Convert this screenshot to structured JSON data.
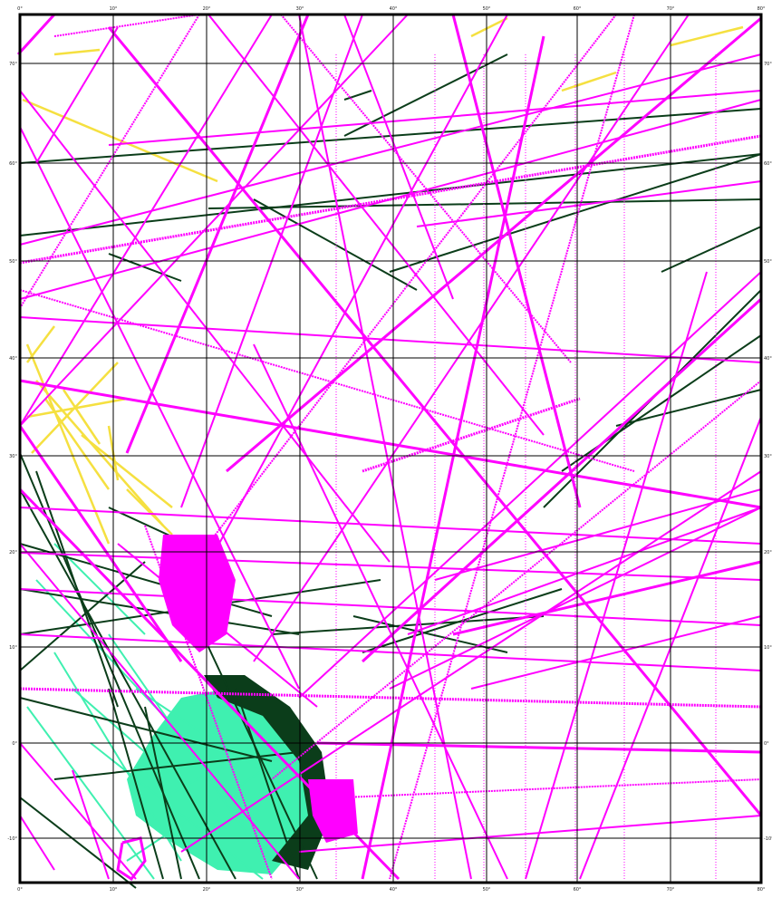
{
  "map": {
    "type": "ship-track-coverage-map",
    "track_colors": {
      "primary": "#ff00ff",
      "secondary": "#0b3d1a",
      "tertiary": "#f5e040",
      "quaternary": "#3ff0b0"
    },
    "grid": {
      "lines": "on",
      "color": "#000000"
    },
    "tick_labels": {
      "top": [
        "0°",
        "10°",
        "20°",
        "30°",
        "40°",
        "50°",
        "60°",
        "70°",
        "80°"
      ],
      "left": [
        "70°",
        "60°",
        "50°",
        "40°",
        "30°",
        "20°",
        "10°",
        "0°",
        "-10°"
      ],
      "right": [
        "70°",
        "60°",
        "50°",
        "40°",
        "30°",
        "20°",
        "10°",
        "0°",
        "-10°"
      ],
      "bottom": [
        "0°",
        "10°",
        "20°",
        "30°",
        "40°",
        "50°",
        "60°",
        "70°",
        "80°"
      ]
    }
  }
}
